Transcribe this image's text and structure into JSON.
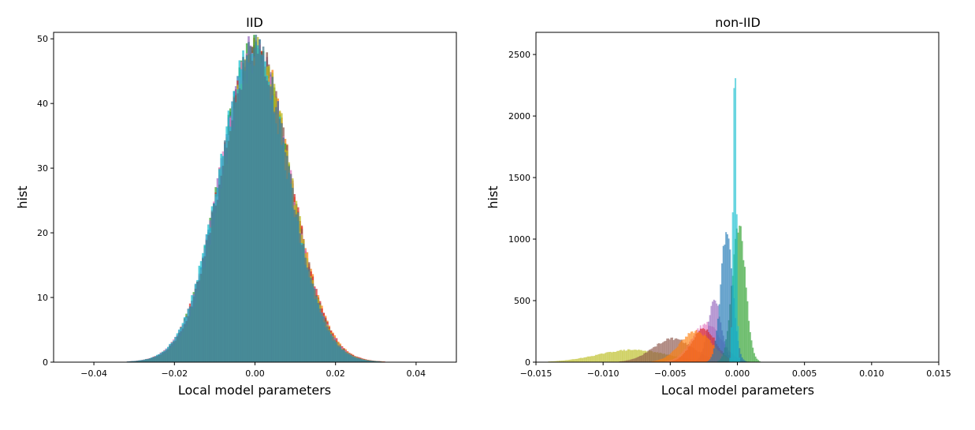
{
  "chart_data": [
    {
      "type": "histogram",
      "title": "IID",
      "xlabel": "Local model parameters",
      "ylabel": "hist",
      "xlim": [
        -0.05,
        0.05
      ],
      "ylim": [
        0,
        51
      ],
      "xticks": [
        -0.04,
        -0.02,
        0.0,
        0.02,
        0.04
      ],
      "xtick_labels": [
        "−0.04",
        "−0.02",
        "0.00",
        "0.02",
        "0.04"
      ],
      "yticks": [
        0,
        10,
        20,
        30,
        40,
        50
      ],
      "ytick_labels": [
        "0",
        "10",
        "20",
        "30",
        "40",
        "50"
      ],
      "grid": false,
      "legend": "none",
      "series": [
        {
          "color": "#1f77b4",
          "mean": 0.0,
          "std": 0.0085,
          "peak": 47.5,
          "tail_level": 0.6,
          "tail_scale": 0.012,
          "range": [
            -0.049,
            0.049
          ]
        },
        {
          "color": "#ff7f0e",
          "mean": 0.0003,
          "std": 0.0087,
          "peak": 47.0,
          "tail_level": 0.6,
          "tail_scale": 0.012,
          "range": [
            -0.049,
            0.049
          ]
        },
        {
          "color": "#2ca02c",
          "mean": -0.0002,
          "std": 0.0086,
          "peak": 47.2,
          "tail_level": 0.6,
          "tail_scale": 0.012,
          "range": [
            -0.049,
            0.049
          ]
        },
        {
          "color": "#d62728",
          "mean": 0.0001,
          "std": 0.0088,
          "peak": 46.8,
          "tail_level": 0.6,
          "tail_scale": 0.012,
          "range": [
            -0.049,
            0.049
          ]
        },
        {
          "color": "#9467bd",
          "mean": -0.0003,
          "std": 0.0084,
          "peak": 47.6,
          "tail_level": 0.6,
          "tail_scale": 0.012,
          "range": [
            -0.049,
            0.049
          ]
        },
        {
          "color": "#8c564b",
          "mean": 0.0002,
          "std": 0.0086,
          "peak": 47.1,
          "tail_level": 0.6,
          "tail_scale": 0.012,
          "range": [
            -0.049,
            0.049
          ]
        },
        {
          "color": "#e377c2",
          "mean": -0.0001,
          "std": 0.0087,
          "peak": 47.3,
          "tail_level": 0.6,
          "tail_scale": 0.012,
          "range": [
            -0.049,
            0.049
          ]
        },
        {
          "color": "#bcbd22",
          "mean": 0.0004,
          "std": 0.0085,
          "peak": 46.9,
          "tail_level": 0.6,
          "tail_scale": 0.012,
          "range": [
            -0.049,
            0.049
          ]
        },
        {
          "color": "#17becf",
          "mean": -0.0004,
          "std": 0.0086,
          "peak": 47.4,
          "tail_level": 0.6,
          "tail_scale": 0.012,
          "range": [
            -0.049,
            0.049
          ]
        },
        {
          "color": "#4a7a90",
          "mean": 0.0,
          "std": 0.0086,
          "peak": 47.2,
          "tail_level": 0.6,
          "tail_scale": 0.012,
          "range": [
            -0.049,
            0.049
          ]
        }
      ]
    },
    {
      "type": "histogram",
      "title": "non-IID",
      "xlabel": "Local model parameters",
      "ylabel": "hist",
      "xlim": [
        -0.015,
        0.015
      ],
      "ylim": [
        0,
        2680
      ],
      "xticks": [
        -0.015,
        -0.01,
        -0.005,
        0.0,
        0.005,
        0.01,
        0.015
      ],
      "xtick_labels": [
        "−0.015",
        "−0.010",
        "−0.005",
        "0.000",
        "0.005",
        "0.010",
        "0.015"
      ],
      "yticks": [
        0,
        500,
        1000,
        1500,
        2000,
        2500
      ],
      "ytick_labels": [
        "0",
        "500",
        "1000",
        "1500",
        "2000",
        "2500"
      ],
      "grid": false,
      "legend": "none",
      "series": [
        {
          "color": "#bcbd22",
          "mean": -0.0078,
          "std": 0.0026,
          "peak": 100,
          "range": [
            -0.0145,
            0.0045
          ]
        },
        {
          "color": "#8c564b",
          "mean": -0.0048,
          "std": 0.0015,
          "peak": 190,
          "range": [
            -0.0095,
            0.002
          ]
        },
        {
          "color": "#e377c2",
          "mean": -0.0023,
          "std": 0.0011,
          "peak": 310,
          "range": [
            -0.0075,
            0.002
          ]
        },
        {
          "color": "#9467bd",
          "mean": -0.0017,
          "std": 0.0005,
          "peak": 500,
          "range": [
            -0.0045,
            0.0005
          ]
        },
        {
          "color": "#d62728",
          "mean": -0.0025,
          "std": 0.0009,
          "peak": 270,
          "range": [
            -0.006,
            0.0015
          ]
        },
        {
          "color": "#ff7f0e",
          "mean": -0.0031,
          "std": 0.0012,
          "peak": 250,
          "range": [
            -0.007,
            0.0015
          ]
        },
        {
          "color": "#2ca02c",
          "mean": 0.0001,
          "std": 0.0005,
          "peak": 1100,
          "range": [
            -0.0035,
            0.004
          ]
        },
        {
          "color": "#1f77b4",
          "mean": -0.0008,
          "std": 0.00045,
          "peak": 1050,
          "range": [
            -0.0035,
            0.003
          ]
        },
        {
          "color": "#17becf",
          "mean": -0.0002,
          "std": 0.00012,
          "peak": 2550,
          "range": [
            -0.0012,
            0.0012
          ]
        }
      ]
    }
  ]
}
